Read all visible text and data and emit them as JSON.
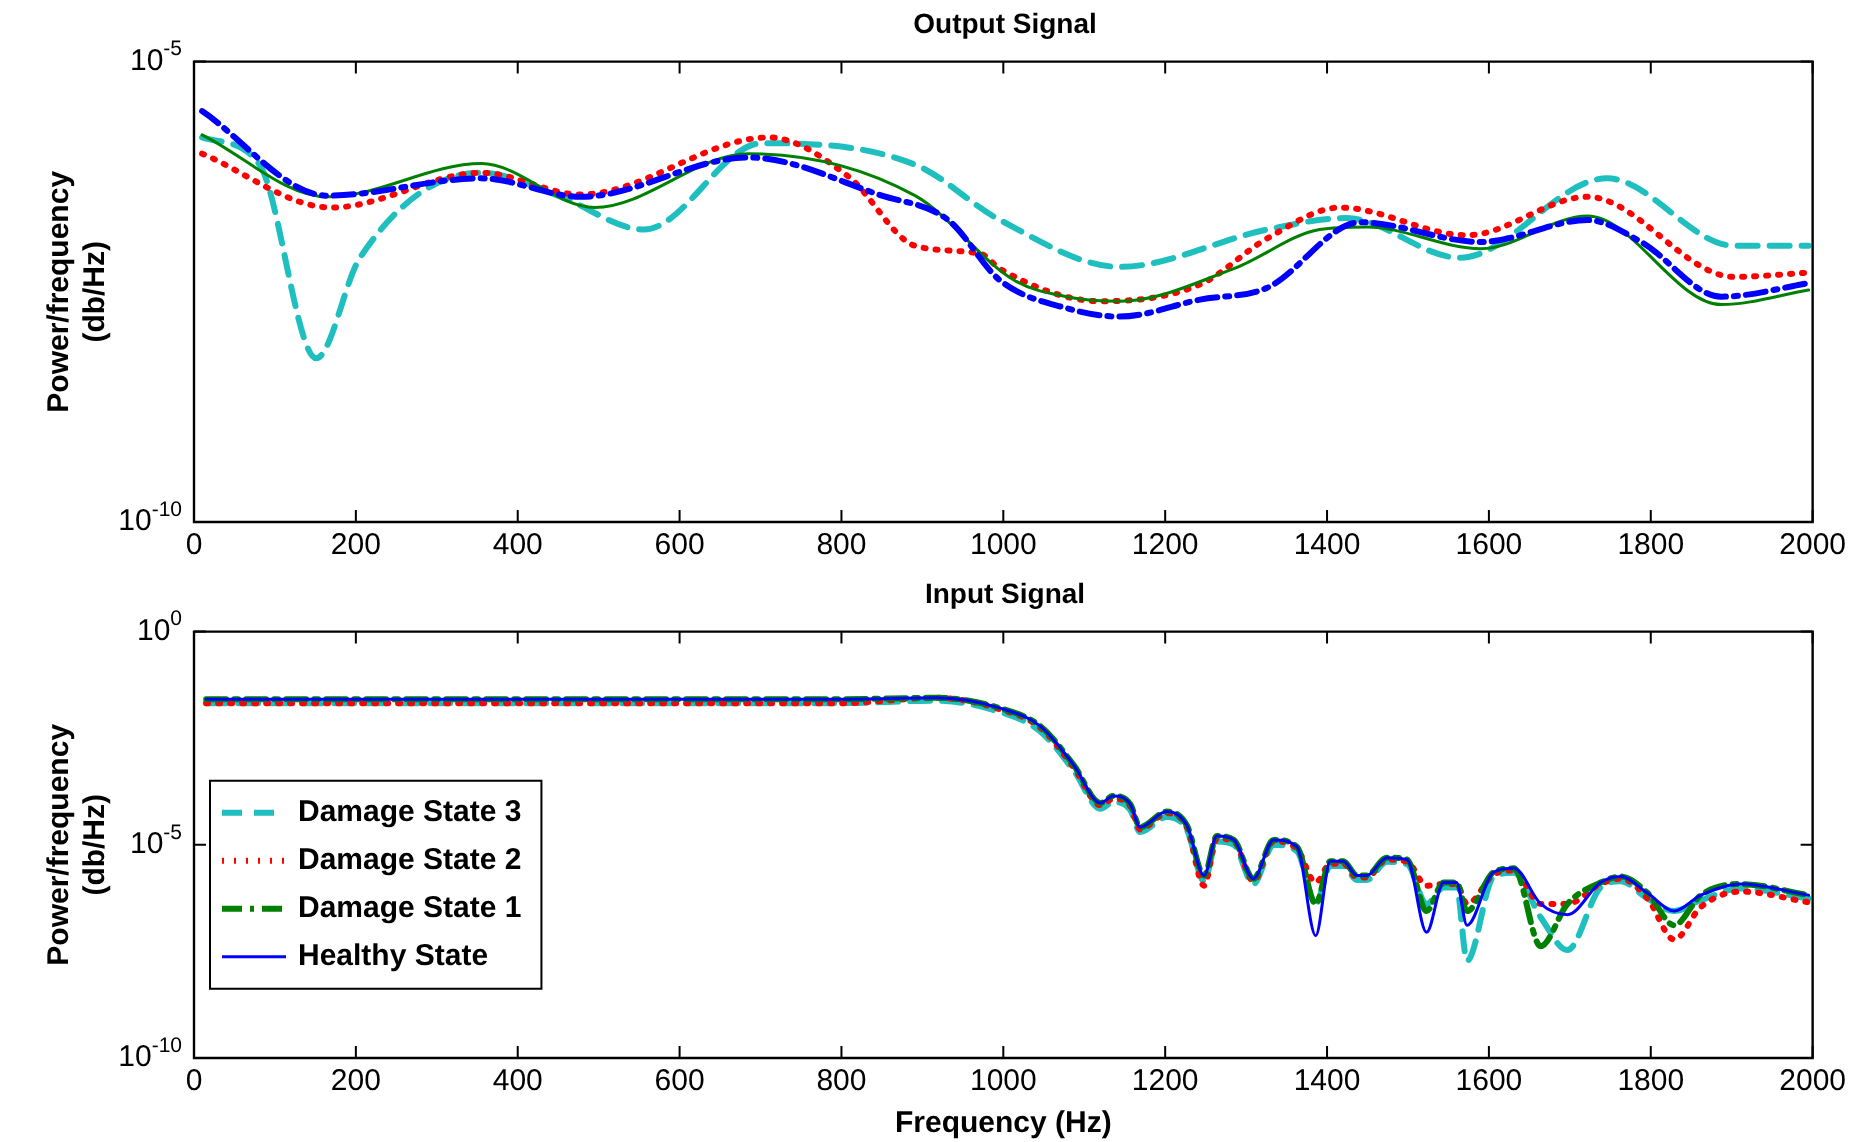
{
  "chart_data": [
    {
      "type": "line",
      "title": "Output Signal",
      "ylabel": "Power/frequency\n(db/Hz)",
      "log": "y",
      "xlim": [
        0,
        2000
      ],
      "xticks": [
        0,
        200,
        400,
        600,
        800,
        1000,
        1200,
        1400,
        1600,
        1800,
        2000
      ],
      "ylim": [
        1e-10,
        1e-05
      ],
      "yticks": [
        {
          "value": 1e-10,
          "label": "10$^{-10}$"
        },
        {
          "value": 1e-05,
          "label": "10$^{-5}$"
        }
      ],
      "grid": false,
      "series": [
        {
          "color": "#1fbfbf",
          "line_style": "dashed",
          "x": [
            10,
            81,
            151,
            205,
            355,
            450,
            556,
            702,
            891,
            996,
            1144,
            1326,
            1424,
            1564,
            1746,
            1903,
            1995
          ],
          "values": [
            1.5e-06,
            7.6e-07,
            6e-09,
            7.4e-08,
            6.2e-07,
            3.5e-07,
            1.5e-07,
            1.3e-06,
            7.6e-07,
            1.9e-07,
            5.9e-08,
            1.5e-07,
            2e-07,
            7.4e-08,
            5.4e-07,
            1e-07,
            1e-07
          ]
        },
        {
          "color": "#ff0000",
          "line_style": "dotted",
          "x": [
            10,
            170,
            355,
            478,
            710,
            809,
            891,
            973,
            996,
            1120,
            1243,
            1326,
            1416,
            1573,
            1722,
            1903,
            1995
          ],
          "values": [
            1e-06,
            2.6e-07,
            6.2e-07,
            3.6e-07,
            1.5e-06,
            5.6e-07,
            1e-07,
            8.1e-08,
            5.6e-08,
            2.5e-08,
            3.8e-08,
            1.2e-07,
            2.6e-07,
            1.3e-07,
            3.4e-07,
            4.6e-08,
            5.1e-08
          ]
        },
        {
          "color": "#008000",
          "line_style": "solid",
          "x": [
            10,
            165,
            355,
            495,
            685,
            891,
            1014,
            1078,
            1144,
            1284,
            1391,
            1449,
            1590,
            1722,
            1887,
            1995
          ],
          "values": [
            1.6e-06,
            3.4e-07,
            7.8e-07,
            2.6e-07,
            1e-06,
            3.5e-07,
            4.2e-08,
            2.8e-08,
            2.5e-08,
            5.6e-08,
            1.5e-07,
            1.6e-07,
            9.3e-08,
            2.1e-07,
            2.3e-08,
            3.3e-08
          ]
        },
        {
          "color": "#0000ff",
          "line_style": "dashdot",
          "x": [
            10,
            165,
            355,
            478,
            685,
            850,
            932,
            996,
            1078,
            1144,
            1243,
            1326,
            1441,
            1590,
            1722,
            1788,
            1887,
            2000
          ],
          "values": [
            2.9e-06,
            3.5e-07,
            5.4e-07,
            3.4e-07,
            9.1e-07,
            3.5e-07,
            1.9e-07,
            4.2e-08,
            2.1e-08,
            1.7e-08,
            2.6e-08,
            3.5e-08,
            1.8e-07,
            1.1e-07,
            1.9e-07,
            1.1e-07,
            2.8e-08,
            4e-08
          ]
        }
      ]
    },
    {
      "type": "line",
      "title": "Input Signal",
      "xlabel": "Frequency (Hz)",
      "ylabel": "Power/frequency\n(db/Hz)",
      "log": "y",
      "xlim": [
        0,
        2000
      ],
      "xticks": [
        0,
        200,
        400,
        600,
        800,
        1000,
        1200,
        1400,
        1600,
        1800,
        2000
      ],
      "ylim": [
        1e-10,
        1
      ],
      "yticks": [
        {
          "value": 1e-10,
          "label": "10$^{-10}$"
        },
        {
          "value": 1e-05,
          "label": "10$^{-5}$"
        },
        {
          "value": 1,
          "label": "10$^{0}$"
        }
      ],
      "grid": false,
      "legend": "left",
      "x": [
        15,
        200,
        400,
        600,
        800,
        917,
        996,
        1046,
        1087,
        1120,
        1136,
        1157,
        1169,
        1202,
        1227,
        1248,
        1264,
        1285,
        1309,
        1334,
        1363,
        1386,
        1404,
        1420,
        1437,
        1449,
        1474,
        1499,
        1523,
        1544,
        1560,
        1573,
        1606,
        1631,
        1664,
        1697,
        1738,
        1763,
        1796,
        1829,
        1862,
        1911,
        1995
      ],
      "series": [
        {
          "name": "Damage State 3",
          "color": "#1fbfbf",
          "line_style": "dashed",
          "values": [
            0.021,
            0.021,
            0.021,
            0.021,
            0.021,
            0.024,
            0.013,
            0.0045,
            0.00055,
            7e-05,
            0.0001,
            6.5e-05,
            2e-05,
            4.5e-05,
            2.2e-05,
            1.4e-06,
            1.2e-05,
            1e-05,
            1.2e-06,
            1e-05,
            7e-06,
            4.1e-07,
            3.2e-06,
            3.2e-06,
            1.5e-06,
            1.5e-06,
            4e-06,
            3.5e-06,
            4.1e-07,
            1e-06,
            1e-06,
            1.9e-08,
            1.8e-06,
            2.2e-06,
            2e-07,
            3.4e-08,
            1e-06,
            1.4e-06,
            5.5e-07,
            2.8e-07,
            5e-07,
            9.5e-07,
            5.5e-07
          ]
        },
        {
          "name": "Damage State 2",
          "color": "#ff0000",
          "line_style": "dotted",
          "values": [
            0.021,
            0.021,
            0.021,
            0.021,
            0.021,
            0.028,
            0.015,
            0.0055,
            0.00065,
            8.5e-05,
            0.00012,
            8e-05,
            2.3e-05,
            5.5e-05,
            2.5e-05,
            1.1e-06,
            1.4e-05,
            1.2e-05,
            1.4e-06,
            1.2e-05,
            8e-06,
            1.3e-06,
            3.6e-06,
            3.6e-06,
            1.7e-06,
            1.7e-06,
            4.5e-06,
            4e-06,
            1.1e-06,
            1.2e-06,
            1.2e-06,
            4.1e-07,
            2e-06,
            2.5e-06,
            4.1e-07,
            4.1e-07,
            1.2e-06,
            1.6e-06,
            5.5e-07,
            6e-08,
            3.5e-07,
            8e-07,
            4.5e-07
          ]
        },
        {
          "name": "Damage State 1",
          "color": "#008000",
          "line_style": "dashdot",
          "values": [
            0.026,
            0.026,
            0.026,
            0.026,
            0.026,
            0.028,
            0.016,
            0.006,
            0.00074,
            9.6e-05,
            0.00014,
            8.9e-05,
            2.6e-05,
            6e-05,
            2.8e-05,
            1.9e-06,
            1.6e-05,
            1.3e-05,
            1.6e-06,
            1.3e-05,
            8.9e-06,
            4.1e-07,
            4.1e-06,
            4.1e-06,
            1.9e-06,
            1.9e-06,
            5e-06,
            4.5e-06,
            2.8e-07,
            1.3e-06,
            1.3e-06,
            2.8e-07,
            2.3e-06,
            2.8e-06,
            4.2e-08,
            4.1e-07,
            1.3e-06,
            1.8e-06,
            7.4e-07,
            1.3e-07,
            6.6e-07,
            1.2e-06,
            6.6e-07
          ]
        },
        {
          "name": "Healthy State",
          "color": "#0000ff",
          "line_style": "solid",
          "values": [
            0.026,
            0.026,
            0.026,
            0.026,
            0.026,
            0.028,
            0.016,
            0.006,
            0.00074,
            9.6e-05,
            0.00014,
            8.9e-05,
            2.6e-05,
            6e-05,
            2.8e-05,
            1.9e-06,
            1.6e-05,
            1.3e-05,
            1.6e-06,
            1.3e-05,
            8.9e-06,
            7.4e-08,
            4.1e-06,
            4.1e-06,
            1.9e-06,
            1.9e-06,
            5e-06,
            4.5e-06,
            8.9e-08,
            1.3e-06,
            1.3e-06,
            1.3e-07,
            2.3e-06,
            2.8e-06,
            4.1e-07,
            2.3e-07,
            1.3e-06,
            1.8e-06,
            7.4e-07,
            2.8e-07,
            6.6e-07,
            1.2e-06,
            6.6e-07
          ]
        }
      ]
    }
  ]
}
